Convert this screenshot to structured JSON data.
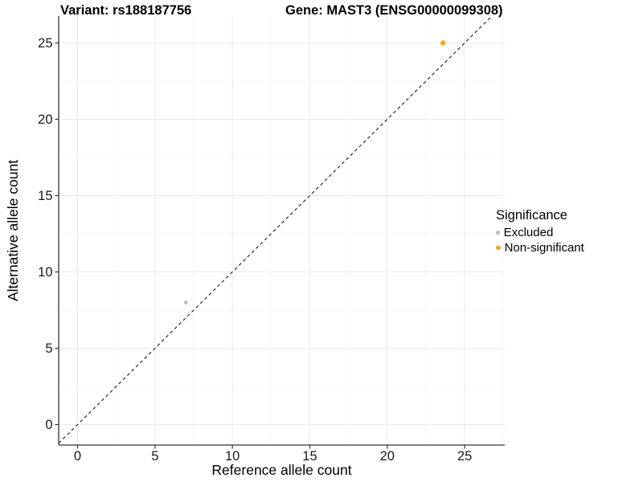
{
  "header": {
    "variant_title": "Variant: rs188187756",
    "gene_title": "Gene: MAST3 (ENSG00000099308)"
  },
  "axes": {
    "x_label": "Reference allele count",
    "y_label": "Alternative allele count"
  },
  "legend": {
    "title": "Significance",
    "items": [
      {
        "label": "Excluded",
        "color": "#BEBEBE",
        "dot_size": 4.6
      },
      {
        "label": "Non-significant",
        "color": "#FFA500",
        "dot_size": 5.6
      }
    ]
  },
  "chart_data": {
    "type": "scatter",
    "title_left": "Variant: rs188187756",
    "title_right": "Gene: MAST3 (ENSG00000099308)",
    "xlabel": "Reference allele count",
    "ylabel": "Alternative allele count",
    "xlim": [
      -1.22,
      27.59
    ],
    "ylim": [
      -1.34,
      26.76
    ],
    "x_ticks": [
      0,
      5,
      10,
      15,
      20,
      25
    ],
    "y_ticks": [
      0,
      5,
      10,
      15,
      20,
      25
    ],
    "x_minor_gridlines": [
      2.5,
      7.5,
      12.5,
      17.5,
      22.5,
      27.5
    ],
    "y_minor_gridlines": [
      2.5,
      7.5,
      12.5,
      17.5,
      22.5
    ],
    "grid": true,
    "legend_position": "right",
    "identity_line": {
      "type": "dashed",
      "slope": 1,
      "intercept": 0,
      "color": "#1A1A1A"
    },
    "series": [
      {
        "name": "Excluded",
        "color": "#BEBEBE",
        "points": [
          {
            "x": 7,
            "y": 8,
            "r": 2.4
          }
        ]
      },
      {
        "name": "Non-significant",
        "color": "#FFA500",
        "points": [
          {
            "x": 23.6,
            "y": 25,
            "r": 3.1
          }
        ]
      }
    ],
    "style": {
      "grid_major": "#E9E9E9",
      "grid_minor": "#F5F5F5",
      "axis_line": "#333333",
      "tick_color": "#333333",
      "tick_label_color": "#1A1A1A",
      "tick_label_size": 16.5
    }
  }
}
